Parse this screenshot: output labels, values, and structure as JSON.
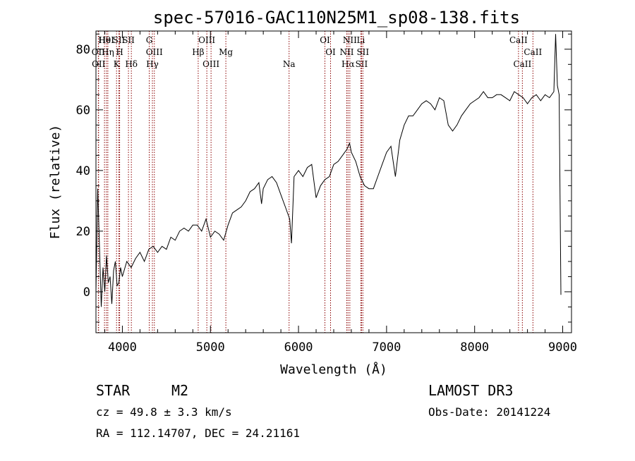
{
  "chart_data": {
    "type": "line",
    "title": "spec-57016-GAC110N25M1_sp08-138.fits",
    "xlabel": "Wavelength (Å)",
    "ylabel": "Flux (relative)",
    "xlim": [
      3700,
      9100
    ],
    "ylim": [
      -13.5,
      86
    ],
    "x_ticks": [
      4000,
      5000,
      6000,
      7000,
      8000,
      9000
    ],
    "y_ticks": [
      0,
      20,
      40,
      60,
      80
    ],
    "x_tick_labels": [
      "4000",
      "5000",
      "6000",
      "7000",
      "8000",
      "9000"
    ],
    "y_tick_labels": [
      "0",
      "20",
      "40",
      "60",
      "80"
    ],
    "series": [
      {
        "name": "flux",
        "x": [
          3700,
          3720,
          3740,
          3760,
          3780,
          3800,
          3820,
          3840,
          3860,
          3880,
          3900,
          3920,
          3940,
          3960,
          3980,
          4000,
          4050,
          4100,
          4150,
          4200,
          4250,
          4300,
          4350,
          4400,
          4450,
          4500,
          4550,
          4600,
          4650,
          4700,
          4750,
          4800,
          4850,
          4900,
          4950,
          5000,
          5050,
          5100,
          5150,
          5200,
          5250,
          5300,
          5350,
          5400,
          5450,
          5500,
          5550,
          5580,
          5600,
          5650,
          5700,
          5750,
          5800,
          5850,
          5900,
          5920,
          5950,
          6000,
          6050,
          6100,
          6150,
          6200,
          6250,
          6300,
          6350,
          6400,
          6450,
          6500,
          6550,
          6580,
          6600,
          6650,
          6700,
          6750,
          6800,
          6850,
          6900,
          6950,
          7000,
          7050,
          7100,
          7150,
          7200,
          7250,
          7300,
          7350,
          7400,
          7450,
          7500,
          7550,
          7600,
          7650,
          7700,
          7750,
          7800,
          7850,
          7900,
          7950,
          8000,
          8050,
          8100,
          8150,
          8200,
          8250,
          8300,
          8350,
          8400,
          8450,
          8500,
          8550,
          8600,
          8650,
          8700,
          8750,
          8800,
          8850,
          8900,
          8920,
          8940,
          8960,
          8980
        ],
        "y": [
          0,
          34,
          15,
          -5,
          8,
          0,
          12,
          3,
          5,
          -4,
          7,
          10,
          2,
          3,
          8,
          5,
          10,
          8,
          11,
          13,
          10,
          14,
          15,
          13,
          15,
          14,
          18,
          17,
          20,
          21,
          20,
          22,
          22,
          20,
          24,
          18,
          20,
          19,
          17,
          22,
          26,
          27,
          28,
          30,
          33,
          34,
          36,
          29,
          34,
          37,
          38,
          36,
          32,
          28,
          24,
          16,
          38,
          40,
          38,
          41,
          42,
          31,
          35,
          37,
          38,
          42,
          43,
          45,
          47,
          49,
          46,
          43,
          38,
          35,
          34,
          34,
          38,
          42,
          46,
          48,
          38,
          50,
          55,
          58,
          58,
          60,
          62,
          63,
          62,
          60,
          64,
          63,
          55,
          53,
          55,
          58,
          60,
          62,
          63,
          64,
          66,
          64,
          64,
          65,
          65,
          64,
          63,
          66,
          65,
          64,
          62,
          64,
          65,
          63,
          65,
          64,
          66,
          85,
          68,
          65,
          -1
        ]
      }
    ],
    "spectral_lines": [
      {
        "label": "Hθ",
        "wavelength": 3797
      },
      {
        "label": "OII",
        "wavelength": 3727
      },
      {
        "label": "OII",
        "wavelength": 3730
      },
      {
        "label": "HeI",
        "wavelength": 3819
      },
      {
        "label": "Hη",
        "wavelength": 3835
      },
      {
        "label": "K",
        "wavelength": 3934
      },
      {
        "label": "SII",
        "wavelength": 3960
      },
      {
        "label": "H",
        "wavelength": 3969
      },
      {
        "label": "Hδ",
        "wavelength": 4102
      },
      {
        "label": "SII",
        "wavelength": 4069
      },
      {
        "label": "OIII",
        "wavelength": 4363
      },
      {
        "label": "Hγ",
        "wavelength": 4341
      },
      {
        "label": "G",
        "wavelength": 4305
      },
      {
        "label": "Hβ",
        "wavelength": 4861
      },
      {
        "label": "OIII",
        "wavelength": 5007
      },
      {
        "label": "OIII",
        "wavelength": 4959
      },
      {
        "label": "Mg",
        "wavelength": 5175
      },
      {
        "label": "Na",
        "wavelength": 5893
      },
      {
        "label": "OI",
        "wavelength": 6300
      },
      {
        "label": "OI",
        "wavelength": 6364
      },
      {
        "label": "Hα",
        "wavelength": 6563
      },
      {
        "label": "NII",
        "wavelength": 6583
      },
      {
        "label": "NII",
        "wavelength": 6548
      },
      {
        "label": "SII",
        "wavelength": 6716
      },
      {
        "label": "Li",
        "wavelength": 6708
      },
      {
        "label": "SII",
        "wavelength": 6731
      },
      {
        "label": "CaII",
        "wavelength": 8542
      },
      {
        "label": "CaII",
        "wavelength": 8498
      },
      {
        "label": "CaII",
        "wavelength": 8662
      }
    ],
    "line_color": "#8b0000"
  },
  "info": {
    "object_class": "STAR",
    "subclass": "M2",
    "survey": "LAMOST DR3",
    "redshift": "cz = 49.8 ± 3.3 km/s",
    "obs_date": "Obs-Date: 20141224",
    "coords": "RA = 112.14707, DEC =  24.21161"
  }
}
